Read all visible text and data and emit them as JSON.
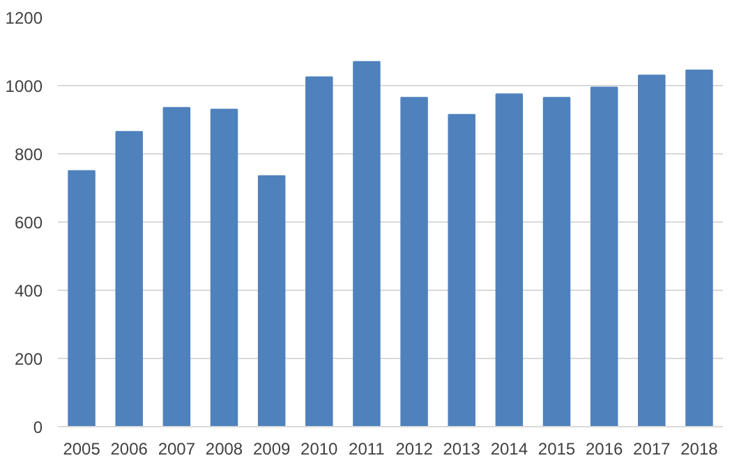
{
  "chart_data": {
    "type": "bar",
    "categories": [
      "2005",
      "2006",
      "2007",
      "2008",
      "2009",
      "2010",
      "2011",
      "2012",
      "2013",
      "2014",
      "2015",
      "2016",
      "2017",
      "2018"
    ],
    "values": [
      750,
      865,
      935,
      930,
      735,
      1025,
      1070,
      965,
      915,
      975,
      965,
      995,
      1030,
      1045
    ],
    "color": "#4f81bd",
    "ylim": [
      0,
      1200
    ],
    "yticks": [
      0,
      200,
      400,
      600,
      800,
      1000,
      1200
    ],
    "grid": "y"
  }
}
